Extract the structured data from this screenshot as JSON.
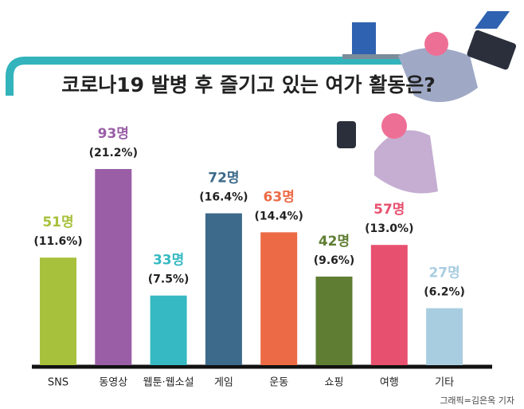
{
  "chart_data": {
    "type": "bar",
    "title": "코로나19 발병 후  즐기고 있는 여가 활동은?",
    "categories": [
      "SNS",
      "동영상",
      "웹툰·웹소설",
      "게임",
      "운동",
      "쇼핑",
      "여행",
      "기타"
    ],
    "values": [
      51,
      93,
      33,
      72,
      63,
      42,
      57,
      27
    ],
    "value_labels": [
      "51명",
      "93명",
      "33명",
      "72명",
      "63명",
      "42명",
      "57명",
      "27명"
    ],
    "percent_labels": [
      "(11.6%)",
      "(21.2%)",
      "(7.5%)",
      "(16.4%)",
      "(14.4%)",
      "(9.6%)",
      "(13.0%)",
      "(6.2%)"
    ],
    "colors": [
      "#a8c13d",
      "#9a5ea6",
      "#36b9c2",
      "#3d6a8b",
      "#ec6a45",
      "#5f7e33",
      "#e8506f",
      "#a9cde0"
    ],
    "credit": "그래픽=김은옥 기자"
  }
}
